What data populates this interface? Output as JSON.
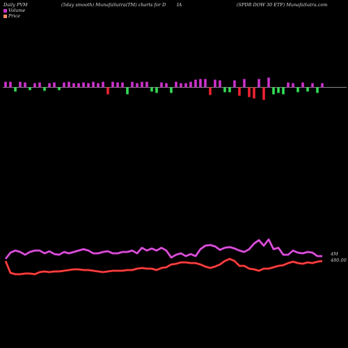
{
  "header": {
    "left": "Daily PVM",
    "middle": "(5day smooth) MunafaSutra(TM) charts for D",
    "middle2": "IA",
    "right": "(SPDR DOW 30  ETF) MunafaSutra.com"
  },
  "legend": [
    {
      "label": "Volume",
      "color": "#cc33cc"
    },
    {
      "label": "Price",
      "color": "#ff8866"
    }
  ],
  "chart_data": {
    "type": "line",
    "volume_bars": {
      "values": [
        8,
        8,
        -6,
        8,
        7,
        -4,
        6,
        7,
        -5,
        6,
        7,
        -4,
        7,
        8,
        6,
        6,
        7,
        6,
        8,
        6,
        8,
        -10,
        8,
        7,
        7,
        -10,
        8,
        6,
        8,
        8,
        -6,
        -8,
        7,
        6,
        -8,
        8,
        6,
        6,
        8,
        11,
        12,
        12,
        -11,
        11,
        10,
        -7,
        -7,
        10,
        -12,
        12,
        -14,
        -16,
        12,
        -18,
        14,
        -10,
        -8,
        -10,
        7,
        6,
        -7,
        7,
        -6,
        6,
        -8,
        6
      ],
      "colors": [
        "#cc33cc",
        "#cc33cc",
        "#33dd55",
        "#cc33cc",
        "#cc33cc",
        "#33dd55",
        "#cc33cc",
        "#cc33cc",
        "#33dd55",
        "#cc33cc",
        "#cc33cc",
        "#33dd55",
        "#cc33cc",
        "#cc33cc",
        "#cc33cc",
        "#cc33cc",
        "#cc33cc",
        "#cc33cc",
        "#cc33cc",
        "#cc33cc",
        "#cc33cc",
        "#ee2233",
        "#cc33cc",
        "#cc33cc",
        "#cc33cc",
        "#33dd55",
        "#cc33cc",
        "#cc33cc",
        "#cc33cc",
        "#cc33cc",
        "#33dd55",
        "#33dd55",
        "#cc33cc",
        "#cc33cc",
        "#33dd55",
        "#cc33cc",
        "#cc33cc",
        "#cc33cc",
        "#cc33cc",
        "#cc33cc",
        "#cc33cc",
        "#cc33cc",
        "#ee2233",
        "#cc33cc",
        "#cc33cc",
        "#33dd55",
        "#33dd55",
        "#cc33cc",
        "#ee2233",
        "#cc33cc",
        "#ee2233",
        "#ee2233",
        "#cc33cc",
        "#ee2233",
        "#cc33cc",
        "#33dd55",
        "#33dd55",
        "#33dd55",
        "#cc33cc",
        "#cc33cc",
        "#33dd55",
        "#cc33cc",
        "#33dd55",
        "#cc33cc",
        "#33dd55",
        "#cc33cc"
      ]
    },
    "volume_line": {
      "name": "Volume",
      "color": "#cc33cc",
      "values": [
        372,
        363,
        360,
        362,
        366,
        362,
        360,
        360,
        364,
        361,
        365,
        366,
        362,
        364,
        362,
        360,
        358,
        360,
        364,
        364,
        362,
        361,
        364,
        364,
        362,
        362,
        360,
        364,
        356,
        360,
        357,
        360,
        356,
        360,
        370,
        366,
        364,
        368,
        365,
        368,
        358,
        353,
        352,
        354,
        359,
        356,
        355,
        357,
        360,
        362,
        358,
        350,
        345,
        353,
        344,
        358,
        356,
        366,
        366,
        360,
        363,
        364,
        362,
        363,
        368,
        368
      ],
      "end_label": "4M"
    },
    "price_line": {
      "name": "Price",
      "color": "#ee2222",
      "values": [
        375,
        392,
        394,
        394,
        393,
        393,
        394,
        391,
        390,
        391,
        390,
        390,
        389,
        388,
        387,
        387,
        388,
        388,
        389,
        390,
        391,
        390,
        389,
        389,
        389,
        388,
        388,
        386,
        385,
        386,
        386,
        388,
        385,
        384,
        380,
        379,
        377,
        377,
        378,
        378,
        380,
        383,
        385,
        383,
        380,
        375,
        372,
        375,
        382,
        382,
        386,
        387,
        389,
        386,
        386,
        384,
        382,
        381,
        378,
        376,
        378,
        379,
        377,
        378,
        376,
        375
      ],
      "end_label": "480.00"
    }
  }
}
